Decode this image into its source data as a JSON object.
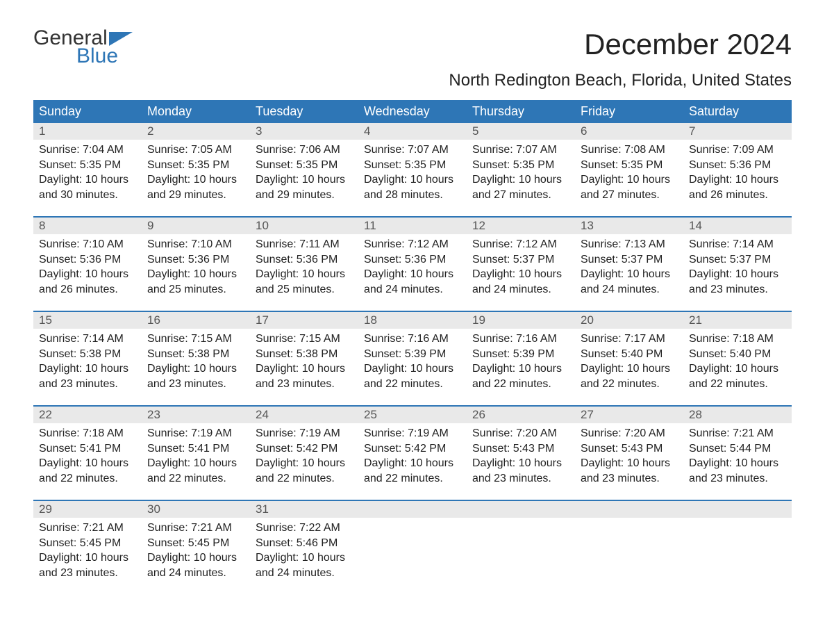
{
  "logo": {
    "text_top": "General",
    "text_bottom": "Blue",
    "accent_color": "#2e76b6"
  },
  "title": "December 2024",
  "subtitle": "North Redington Beach, Florida, United States",
  "colors": {
    "header_bg": "#2e76b6",
    "header_text": "#ffffff",
    "daynum_bg": "#e9e9e9",
    "daynum_text": "#555555",
    "body_text": "#222222",
    "week_border": "#2e76b6",
    "background": "#ffffff"
  },
  "typography": {
    "title_fontsize": 42,
    "subtitle_fontsize": 24,
    "header_fontsize": 18,
    "cell_fontsize": 16
  },
  "day_labels": [
    "Sunday",
    "Monday",
    "Tuesday",
    "Wednesday",
    "Thursday",
    "Friday",
    "Saturday"
  ],
  "weeks": [
    [
      {
        "n": "1",
        "sr": "Sunrise: 7:04 AM",
        "ss": "Sunset: 5:35 PM",
        "d1": "Daylight: 10 hours",
        "d2": "and 30 minutes."
      },
      {
        "n": "2",
        "sr": "Sunrise: 7:05 AM",
        "ss": "Sunset: 5:35 PM",
        "d1": "Daylight: 10 hours",
        "d2": "and 29 minutes."
      },
      {
        "n": "3",
        "sr": "Sunrise: 7:06 AM",
        "ss": "Sunset: 5:35 PM",
        "d1": "Daylight: 10 hours",
        "d2": "and 29 minutes."
      },
      {
        "n": "4",
        "sr": "Sunrise: 7:07 AM",
        "ss": "Sunset: 5:35 PM",
        "d1": "Daylight: 10 hours",
        "d2": "and 28 minutes."
      },
      {
        "n": "5",
        "sr": "Sunrise: 7:07 AM",
        "ss": "Sunset: 5:35 PM",
        "d1": "Daylight: 10 hours",
        "d2": "and 27 minutes."
      },
      {
        "n": "6",
        "sr": "Sunrise: 7:08 AM",
        "ss": "Sunset: 5:35 PM",
        "d1": "Daylight: 10 hours",
        "d2": "and 27 minutes."
      },
      {
        "n": "7",
        "sr": "Sunrise: 7:09 AM",
        "ss": "Sunset: 5:36 PM",
        "d1": "Daylight: 10 hours",
        "d2": "and 26 minutes."
      }
    ],
    [
      {
        "n": "8",
        "sr": "Sunrise: 7:10 AM",
        "ss": "Sunset: 5:36 PM",
        "d1": "Daylight: 10 hours",
        "d2": "and 26 minutes."
      },
      {
        "n": "9",
        "sr": "Sunrise: 7:10 AM",
        "ss": "Sunset: 5:36 PM",
        "d1": "Daylight: 10 hours",
        "d2": "and 25 minutes."
      },
      {
        "n": "10",
        "sr": "Sunrise: 7:11 AM",
        "ss": "Sunset: 5:36 PM",
        "d1": "Daylight: 10 hours",
        "d2": "and 25 minutes."
      },
      {
        "n": "11",
        "sr": "Sunrise: 7:12 AM",
        "ss": "Sunset: 5:36 PM",
        "d1": "Daylight: 10 hours",
        "d2": "and 24 minutes."
      },
      {
        "n": "12",
        "sr": "Sunrise: 7:12 AM",
        "ss": "Sunset: 5:37 PM",
        "d1": "Daylight: 10 hours",
        "d2": "and 24 minutes."
      },
      {
        "n": "13",
        "sr": "Sunrise: 7:13 AM",
        "ss": "Sunset: 5:37 PM",
        "d1": "Daylight: 10 hours",
        "d2": "and 24 minutes."
      },
      {
        "n": "14",
        "sr": "Sunrise: 7:14 AM",
        "ss": "Sunset: 5:37 PM",
        "d1": "Daylight: 10 hours",
        "d2": "and 23 minutes."
      }
    ],
    [
      {
        "n": "15",
        "sr": "Sunrise: 7:14 AM",
        "ss": "Sunset: 5:38 PM",
        "d1": "Daylight: 10 hours",
        "d2": "and 23 minutes."
      },
      {
        "n": "16",
        "sr": "Sunrise: 7:15 AM",
        "ss": "Sunset: 5:38 PM",
        "d1": "Daylight: 10 hours",
        "d2": "and 23 minutes."
      },
      {
        "n": "17",
        "sr": "Sunrise: 7:15 AM",
        "ss": "Sunset: 5:38 PM",
        "d1": "Daylight: 10 hours",
        "d2": "and 23 minutes."
      },
      {
        "n": "18",
        "sr": "Sunrise: 7:16 AM",
        "ss": "Sunset: 5:39 PM",
        "d1": "Daylight: 10 hours",
        "d2": "and 22 minutes."
      },
      {
        "n": "19",
        "sr": "Sunrise: 7:16 AM",
        "ss": "Sunset: 5:39 PM",
        "d1": "Daylight: 10 hours",
        "d2": "and 22 minutes."
      },
      {
        "n": "20",
        "sr": "Sunrise: 7:17 AM",
        "ss": "Sunset: 5:40 PM",
        "d1": "Daylight: 10 hours",
        "d2": "and 22 minutes."
      },
      {
        "n": "21",
        "sr": "Sunrise: 7:18 AM",
        "ss": "Sunset: 5:40 PM",
        "d1": "Daylight: 10 hours",
        "d2": "and 22 minutes."
      }
    ],
    [
      {
        "n": "22",
        "sr": "Sunrise: 7:18 AM",
        "ss": "Sunset: 5:41 PM",
        "d1": "Daylight: 10 hours",
        "d2": "and 22 minutes."
      },
      {
        "n": "23",
        "sr": "Sunrise: 7:19 AM",
        "ss": "Sunset: 5:41 PM",
        "d1": "Daylight: 10 hours",
        "d2": "and 22 minutes."
      },
      {
        "n": "24",
        "sr": "Sunrise: 7:19 AM",
        "ss": "Sunset: 5:42 PM",
        "d1": "Daylight: 10 hours",
        "d2": "and 22 minutes."
      },
      {
        "n": "25",
        "sr": "Sunrise: 7:19 AM",
        "ss": "Sunset: 5:42 PM",
        "d1": "Daylight: 10 hours",
        "d2": "and 22 minutes."
      },
      {
        "n": "26",
        "sr": "Sunrise: 7:20 AM",
        "ss": "Sunset: 5:43 PM",
        "d1": "Daylight: 10 hours",
        "d2": "and 23 minutes."
      },
      {
        "n": "27",
        "sr": "Sunrise: 7:20 AM",
        "ss": "Sunset: 5:43 PM",
        "d1": "Daylight: 10 hours",
        "d2": "and 23 minutes."
      },
      {
        "n": "28",
        "sr": "Sunrise: 7:21 AM",
        "ss": "Sunset: 5:44 PM",
        "d1": "Daylight: 10 hours",
        "d2": "and 23 minutes."
      }
    ],
    [
      {
        "n": "29",
        "sr": "Sunrise: 7:21 AM",
        "ss": "Sunset: 5:45 PM",
        "d1": "Daylight: 10 hours",
        "d2": "and 23 minutes."
      },
      {
        "n": "30",
        "sr": "Sunrise: 7:21 AM",
        "ss": "Sunset: 5:45 PM",
        "d1": "Daylight: 10 hours",
        "d2": "and 24 minutes."
      },
      {
        "n": "31",
        "sr": "Sunrise: 7:22 AM",
        "ss": "Sunset: 5:46 PM",
        "d1": "Daylight: 10 hours",
        "d2": "and 24 minutes."
      },
      {
        "empty": true
      },
      {
        "empty": true
      },
      {
        "empty": true
      },
      {
        "empty": true
      }
    ]
  ]
}
